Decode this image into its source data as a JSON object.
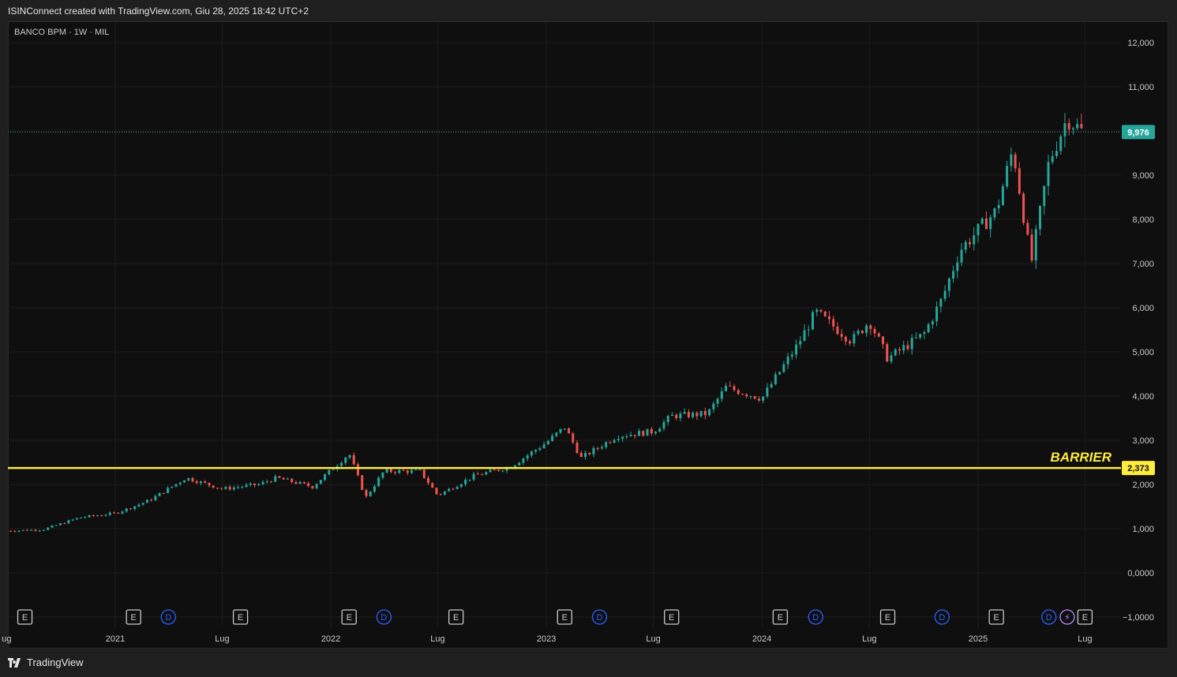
{
  "header": {
    "caption": "ISINConnect created with TradingView.com, Giu 28, 2025 18:42 UTC+2"
  },
  "symbol": {
    "label": "BANCO BPM · 1W · MIL"
  },
  "footer": {
    "brand": "TradingView"
  },
  "colors": {
    "up": "#26a69a",
    "down": "#ef5350",
    "barrier": "#ffeb3b",
    "price_badge": "#26a69a",
    "dividend_event": "#2962ff",
    "earnings_event": "#c9c9c9",
    "split_event": "#e040fb"
  },
  "chart_data": {
    "type": "candlestick",
    "title": "BANCO BPM · 1W · MIL",
    "ylim": [
      -1,
      12
    ],
    "y_ticks": [
      "12,000",
      "11,000",
      "10,000",
      "9,000",
      "8,000",
      "7,000",
      "6,000",
      "5,000",
      "4,000",
      "3,000",
      "2,000",
      "1,000",
      "0,0000",
      "−1,0000"
    ],
    "x_ticks": [
      {
        "label": "ug",
        "date": "2020-07"
      },
      {
        "label": "2021",
        "date": "2021-01"
      },
      {
        "label": "Lug",
        "date": "2021-07"
      },
      {
        "label": "2022",
        "date": "2022-01"
      },
      {
        "label": "Lug",
        "date": "2022-07"
      },
      {
        "label": "2023",
        "date": "2023-01"
      },
      {
        "label": "Lug",
        "date": "2023-07"
      },
      {
        "label": "2024",
        "date": "2024-01"
      },
      {
        "label": "Lug",
        "date": "2024-07"
      },
      {
        "label": "2025",
        "date": "2025-01"
      },
      {
        "label": "Lug",
        "date": "2025-07"
      }
    ],
    "price_path": [
      {
        "date": "2020-07",
        "close": 0.95
      },
      {
        "date": "2020-09",
        "close": 0.98
      },
      {
        "date": "2020-11",
        "close": 1.25
      },
      {
        "date": "2021-01",
        "close": 1.35
      },
      {
        "date": "2021-02",
        "close": 1.5
      },
      {
        "date": "2021-03",
        "close": 1.65
      },
      {
        "date": "2021-05",
        "close": 2.15
      },
      {
        "date": "2021-07",
        "close": 1.9
      },
      {
        "date": "2021-09",
        "close": 2.0
      },
      {
        "date": "2021-10",
        "close": 2.15
      },
      {
        "date": "2021-12",
        "close": 1.95
      },
      {
        "date": "2022-02",
        "close": 2.7
      },
      {
        "date": "2022-03",
        "close": 1.7
      },
      {
        "date": "2022-04",
        "close": 2.3
      },
      {
        "date": "2022-06",
        "close": 2.3
      },
      {
        "date": "2022-07",
        "close": 1.75
      },
      {
        "date": "2022-09",
        "close": 2.2
      },
      {
        "date": "2022-11",
        "close": 2.4
      },
      {
        "date": "2023-01",
        "close": 2.95
      },
      {
        "date": "2023-02",
        "close": 3.3
      },
      {
        "date": "2023-03",
        "close": 2.6
      },
      {
        "date": "2023-05",
        "close": 3.1
      },
      {
        "date": "2023-07",
        "close": 3.2
      },
      {
        "date": "2023-08",
        "close": 3.55
      },
      {
        "date": "2023-10",
        "close": 3.6
      },
      {
        "date": "2023-11",
        "close": 4.2
      },
      {
        "date": "2024-01",
        "close": 3.95
      },
      {
        "date": "2024-03",
        "close": 5.15
      },
      {
        "date": "2024-04",
        "close": 5.9
      },
      {
        "date": "2024-06",
        "close": 5.25
      },
      {
        "date": "2024-07",
        "close": 5.7
      },
      {
        "date": "2024-08",
        "close": 4.85
      },
      {
        "date": "2024-10",
        "close": 5.4
      },
      {
        "date": "2024-11",
        "close": 6.2
      },
      {
        "date": "2024-12",
        "close": 7.3
      },
      {
        "date": "2025-02",
        "close": 8.2
      },
      {
        "date": "2025-03",
        "close": 9.6
      },
      {
        "date": "2025-04",
        "close": 7.0
      },
      {
        "date": "2025-05",
        "close": 9.3
      },
      {
        "date": "2025-06",
        "close": 10.3
      },
      {
        "date": "2025-06-27",
        "close": 9.976
      }
    ],
    "last_price": {
      "value": 9.976,
      "label": "9,976"
    },
    "barrier": {
      "value": 2.373,
      "label": "2,373",
      "text": "BARRIER"
    },
    "events": [
      {
        "type": "E",
        "date": "2020-08"
      },
      {
        "type": "E",
        "date": "2021-02"
      },
      {
        "type": "D",
        "date": "2021-04"
      },
      {
        "type": "E",
        "date": "2021-08"
      },
      {
        "type": "E",
        "date": "2022-02"
      },
      {
        "type": "D",
        "date": "2022-04"
      },
      {
        "type": "E",
        "date": "2022-08"
      },
      {
        "type": "E",
        "date": "2023-02"
      },
      {
        "type": "D",
        "date": "2023-04"
      },
      {
        "type": "E",
        "date": "2023-08"
      },
      {
        "type": "E",
        "date": "2024-02"
      },
      {
        "type": "D",
        "date": "2024-04"
      },
      {
        "type": "E",
        "date": "2024-08"
      },
      {
        "type": "D",
        "date": "2024-11"
      },
      {
        "type": "E",
        "date": "2025-02"
      },
      {
        "type": "D",
        "date": "2025-05"
      },
      {
        "type": "S",
        "date": "2025-06"
      },
      {
        "type": "E",
        "date": "2025-07"
      }
    ]
  }
}
